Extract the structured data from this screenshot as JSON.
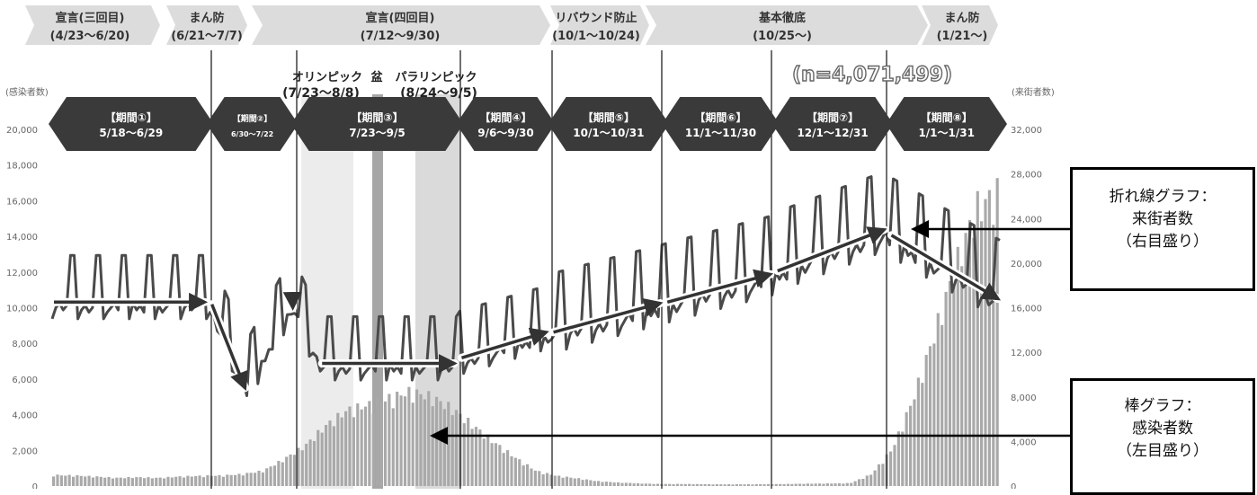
{
  "policy_periods": [
    {
      "line1": "宣言(三回目)",
      "line2": "(4/23〜6/20)"
    },
    {
      "line1": "まん防",
      "line2": "(6/21〜7/7)"
    },
    {
      "line1": "宣言(四回目)",
      "line2": "(7/12〜9/30)"
    },
    {
      "line1": "リバウンド防止",
      "line2": "(10/1〜10/24)"
    },
    {
      "line1": "基本徹底",
      "line2": "(10/25〜)"
    },
    {
      "line1": "まん防",
      "line2": "(1/21〜)"
    }
  ],
  "events": {
    "olympics_label": "オリンピック",
    "olympics_dates": "(7/23〜8/8)",
    "obon_label": "盆",
    "paralympics_label": "パラリンピック",
    "paralympics_dates": "(8/24〜9/5)"
  },
  "n_label": "(n=4,071,499)",
  "left_axis_title": "(感染者数)",
  "right_axis_title": "(来街者数)",
  "phases": [
    {
      "name": "【期間①】",
      "dates": "5/18〜6/29"
    },
    {
      "name": "【期間②】",
      "dates": "6/30〜7/22"
    },
    {
      "name": "【期間③】",
      "dates": "7/23〜9/5"
    },
    {
      "name": "【期間④】",
      "dates": "9/6〜9/30"
    },
    {
      "name": "【期間⑤】",
      "dates": "10/1〜10/31"
    },
    {
      "name": "【期間⑥】",
      "dates": "11/1〜11/30"
    },
    {
      "name": "【期間⑦】",
      "dates": "12/1〜12/31"
    },
    {
      "name": "【期間⑧】",
      "dates": "1/1〜1/31"
    }
  ],
  "callouts": {
    "line": {
      "line1": "折れ線グラフ：",
      "line2": "来街者数",
      "line3": "（右目盛り）"
    },
    "bar": {
      "line1": "棒グラフ：",
      "line2": "感染者数",
      "line3": "（左目盛り）"
    }
  },
  "chart_data": {
    "type": "bar+line",
    "left_axis": {
      "ticks": [
        "0",
        "2,000",
        "4,000",
        "6,000",
        "8,000",
        "10,000",
        "12,000",
        "14,000",
        "16,000",
        "18,000",
        "20,000"
      ],
      "ylim": [
        0,
        20000
      ]
    },
    "right_axis": {
      "ticks": [
        "0",
        "4,000",
        "8,000",
        "12,000",
        "16,000",
        "20,000",
        "24,000",
        "28,000",
        "32,000"
      ],
      "ylim": [
        0,
        32000
      ]
    },
    "phase_day_ranges": [
      [
        0,
        42
      ],
      [
        43,
        65
      ],
      [
        66,
        110
      ],
      [
        111,
        135
      ],
      [
        136,
        166
      ],
      [
        167,
        196
      ],
      [
        197,
        227
      ],
      [
        228,
        258
      ]
    ],
    "infections_weekly": [
      650,
      620,
      560,
      480,
      520,
      480,
      560,
      600,
      620,
      700,
      900,
      1600,
      2400,
      3600,
      4500,
      4800,
      5200,
      5600,
      5300,
      4600,
      3600,
      2600,
      1700,
      900,
      600,
      450,
      280,
      200,
      150,
      120,
      120,
      110,
      100,
      100,
      110,
      120,
      140,
      150,
      170,
      700,
      2200,
      5200,
      9000,
      13000,
      16500,
      17300
    ],
    "visitors_trend": [
      [
        0,
        16500
      ],
      [
        42,
        16500
      ],
      [
        43,
        16300
      ],
      [
        53,
        8800
      ],
      [
        65,
        16300
      ],
      [
        66,
        16000
      ],
      [
        73,
        11000
      ],
      [
        110,
        11000
      ],
      [
        111,
        11500
      ],
      [
        135,
        13800
      ],
      [
        136,
        13800
      ],
      [
        166,
        16400
      ],
      [
        167,
        16500
      ],
      [
        196,
        19000
      ],
      [
        197,
        19300
      ],
      [
        227,
        23000
      ],
      [
        228,
        22500
      ],
      [
        258,
        16800
      ]
    ]
  }
}
